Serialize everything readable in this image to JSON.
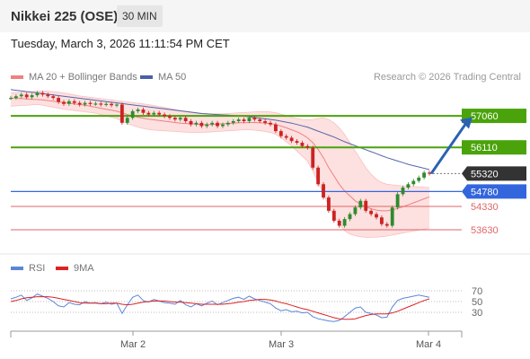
{
  "header": {
    "title": "Nikkei 225 (OSE)",
    "timeframe": "30 MIN"
  },
  "timestamp": "Tuesday, March 3, 2026 11:11:54 PM CET",
  "legend": {
    "ma20": "MA 20 + Bollinger Bands",
    "ma50": "MA 50",
    "credit": "Research © 2026 Trading Central"
  },
  "rsi_legend": {
    "rsi": "RSI",
    "ma9": "9MA"
  },
  "colors": {
    "up_candle": "#2e8b2e",
    "down_candle": "#cc2222",
    "resistance": "#4aa30a",
    "pivot": "#3366dd",
    "support": "#e06666",
    "ma20": "#f08080",
    "ma50": "#5566aa",
    "band_fill": "#fde0e0",
    "rsi": "#5b86d8",
    "rsi_ma": "#dd2222",
    "arrow": "#2a62b0"
  },
  "chart_data": [
    {
      "type": "candlestick",
      "title": "Nikkei 225 (OSE)",
      "ylim": [
        53250,
        57900
      ],
      "x_ticks": [
        "Mar 2",
        "Mar 3",
        "Mar 4"
      ],
      "levels": [
        {
          "value": 57060,
          "label": "57060",
          "kind": "resistance"
        },
        {
          "value": 56110,
          "label": "56110",
          "kind": "resistance"
        },
        {
          "value": 55320,
          "label": "55320",
          "kind": "last"
        },
        {
          "value": 54780,
          "label": "54780",
          "kind": "pivot"
        },
        {
          "value": 54330,
          "label": "54330",
          "kind": "support"
        },
        {
          "value": 53630,
          "label": "53630",
          "kind": "support"
        }
      ],
      "close": [
        57600,
        57650,
        57700,
        57620,
        57680,
        57750,
        57700,
        57650,
        57600,
        57480,
        57420,
        57500,
        57450,
        57400,
        57450,
        57420,
        57430,
        57400,
        57420,
        57380,
        57400,
        56850,
        57000,
        57200,
        57250,
        57150,
        57100,
        57150,
        57100,
        57050,
        57000,
        56950,
        57000,
        56900,
        56800,
        56850,
        56750,
        56800,
        56850,
        56750,
        56800,
        56850,
        56900,
        56950,
        56900,
        57000,
        56950,
        56900,
        56850,
        56800,
        56600,
        56450,
        56400,
        56300,
        56250,
        56150,
        56100,
        55500,
        55000,
        54600,
        54200,
        53900,
        53750,
        53950,
        54100,
        54300,
        54500,
        54200,
        54100,
        54000,
        53800,
        53750,
        54300,
        54700,
        54900,
        55000,
        55100,
        55200,
        55350,
        55320
      ],
      "ma20": [
        57600,
        57590,
        57580,
        57570,
        57560,
        57550,
        57540,
        57520,
        57500,
        57480,
        57460,
        57440,
        57420,
        57400,
        57380,
        57350,
        57320,
        57290,
        57260,
        57230,
        57200,
        57150,
        57100,
        57060,
        57020,
        56990,
        56960,
        56940,
        56920,
        56900,
        56880,
        56860,
        56840,
        56830,
        56820,
        56810,
        56800,
        56800,
        56800,
        56810,
        56820,
        56830,
        56840,
        56850,
        56850,
        56860,
        56860,
        56850,
        56840,
        56830,
        56800,
        56750,
        56700,
        56640,
        56580,
        56500,
        56400,
        56250,
        56050,
        55800,
        55500,
        55250,
        55000,
        54800,
        54650,
        54500,
        54400,
        54320,
        54260,
        54220,
        54200,
        54200,
        54230,
        54270,
        54320,
        54380,
        54440,
        54500,
        54560,
        54620
      ],
      "band_upper": [
        57750,
        57760,
        57770,
        57780,
        57790,
        57800,
        57810,
        57800,
        57790,
        57770,
        57750,
        57720,
        57690,
        57660,
        57640,
        57620,
        57600,
        57580,
        57560,
        57540,
        57520,
        57500,
        57480,
        57460,
        57440,
        57420,
        57400,
        57370,
        57340,
        57310,
        57280,
        57250,
        57220,
        57200,
        57180,
        57160,
        57140,
        57130,
        57120,
        57120,
        57120,
        57130,
        57140,
        57150,
        57160,
        57170,
        57180,
        57190,
        57190,
        57180,
        57150,
        57110,
        57070,
        57020,
        56980,
        56950,
        56940,
        56950,
        56980,
        57000,
        56950,
        56850,
        56700,
        56500,
        56250,
        56000,
        55750,
        55500,
        55300,
        55150,
        55050,
        55000,
        54980,
        54960,
        54950,
        54940,
        54930,
        54920,
        54910,
        54900
      ],
      "band_lower": [
        57350,
        57360,
        57370,
        57380,
        57390,
        57400,
        57380,
        57350,
        57320,
        57290,
        57260,
        57240,
        57220,
        57200,
        57180,
        57160,
        57140,
        57100,
        57060,
        57020,
        56980,
        56900,
        56830,
        56770,
        56720,
        56680,
        56650,
        56630,
        56620,
        56610,
        56600,
        56590,
        56580,
        56570,
        56560,
        56560,
        56560,
        56570,
        56580,
        56590,
        56600,
        56610,
        56620,
        56630,
        56640,
        56640,
        56630,
        56610,
        56590,
        56560,
        56500,
        56400,
        56280,
        56150,
        56000,
        55850,
        55700,
        55400,
        55050,
        54700,
        54350,
        54050,
        53800,
        53600,
        53500,
        53450,
        53420,
        53400,
        53400,
        53410,
        53420,
        53440,
        53470,
        53500,
        53530,
        53560,
        53590,
        53620,
        53650,
        53680
      ],
      "ma50": [
        57850,
        57830,
        57810,
        57790,
        57770,
        57750,
        57730,
        57710,
        57690,
        57670,
        57650,
        57630,
        57610,
        57590,
        57570,
        57550,
        57530,
        57510,
        57490,
        57470,
        57450,
        57430,
        57410,
        57390,
        57370,
        57350,
        57330,
        57310,
        57290,
        57270,
        57250,
        57230,
        57210,
        57190,
        57170,
        57150,
        57130,
        57120,
        57110,
        57100,
        57090,
        57080,
        57070,
        57060,
        57050,
        57030,
        57010,
        56990,
        56970,
        56950,
        56930,
        56900,
        56870,
        56840,
        56800,
        56760,
        56720,
        56660,
        56600,
        56540,
        56480,
        56420,
        56350,
        56280,
        56220,
        56160,
        56100,
        56040,
        55980,
        55920,
        55860,
        55800,
        55750,
        55700,
        55650,
        55600,
        55560,
        55520,
        55480,
        55440
      ]
    },
    {
      "type": "line",
      "title": "RSI",
      "ylim": [
        0,
        100
      ],
      "y_ticks": [
        70,
        50,
        30
      ],
      "series": [
        {
          "name": "RSI",
          "values": [
            55,
            58,
            62,
            52,
            57,
            64,
            60,
            56,
            50,
            42,
            40,
            48,
            45,
            44,
            50,
            47,
            48,
            46,
            49,
            45,
            47,
            28,
            44,
            58,
            62,
            52,
            49,
            54,
            51,
            48,
            47,
            45,
            52,
            44,
            40,
            46,
            42,
            47,
            51,
            44,
            48,
            52,
            56,
            58,
            54,
            60,
            55,
            52,
            49,
            46,
            38,
            33,
            35,
            31,
            32,
            29,
            30,
            22,
            18,
            16,
            14,
            13,
            15,
            22,
            30,
            38,
            40,
            30,
            28,
            25,
            20,
            21,
            40,
            52,
            56,
            58,
            60,
            62,
            60,
            58
          ]
        },
        {
          "name": "9MA",
          "values": [
            50,
            52,
            55,
            57,
            58,
            59,
            59,
            59,
            58,
            56,
            54,
            52,
            50,
            48,
            47,
            47,
            47,
            46,
            46,
            47,
            47,
            45,
            44,
            45,
            47,
            49,
            50,
            51,
            51,
            51,
            50,
            49,
            49,
            48,
            47,
            46,
            45,
            45,
            45,
            45,
            45,
            46,
            47,
            49,
            50,
            52,
            53,
            54,
            54,
            53,
            51,
            48,
            46,
            43,
            40,
            37,
            35,
            32,
            29,
            26,
            23,
            20,
            18,
            17,
            17,
            18,
            21,
            24,
            26,
            27,
            27,
            27,
            29,
            32,
            36,
            40,
            44,
            48,
            52,
            55
          ]
        }
      ]
    }
  ]
}
